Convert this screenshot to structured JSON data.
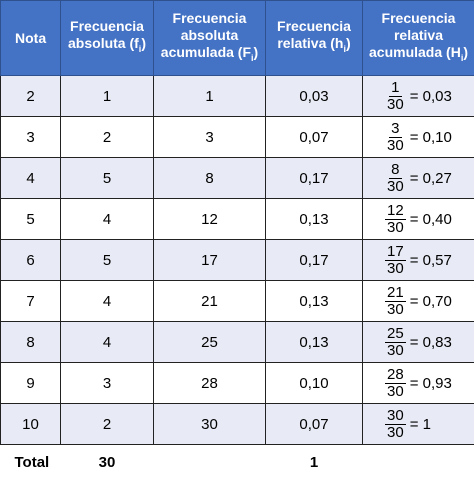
{
  "headers": {
    "nota": "Nota",
    "fi": "Frecuencia absoluta (f",
    "fi_sub": "i",
    "Fi": "Frecuencia absoluta acumulada (F",
    "Fi_sub": "i",
    "hi": "Frecuencia relativa (h",
    "hi_sub": "i",
    "Hi": "Frecuencia relativa acumulada (H",
    "Hi_sub": "i",
    "close": ")"
  },
  "rows": [
    {
      "nota": "2",
      "fi": "1",
      "Fi": "1",
      "hi": "0,03",
      "num": "1",
      "den": "30",
      "Hi": "= 0,03"
    },
    {
      "nota": "3",
      "fi": "2",
      "Fi": "3",
      "hi": "0,07",
      "num": "3",
      "den": "30",
      "Hi": "= 0,10"
    },
    {
      "nota": "4",
      "fi": "5",
      "Fi": "8",
      "hi": "0,17",
      "num": "8",
      "den": "30",
      "Hi": "= 0,27"
    },
    {
      "nota": "5",
      "fi": "4",
      "Fi": "12",
      "hi": "0,13",
      "num": "12",
      "den": "30",
      "Hi": "= 0,40"
    },
    {
      "nota": "6",
      "fi": "5",
      "Fi": "17",
      "hi": "0,17",
      "num": "17",
      "den": "30",
      "Hi": "= 0,57"
    },
    {
      "nota": "7",
      "fi": "4",
      "Fi": "21",
      "hi": "0,13",
      "num": "21",
      "den": "30",
      "Hi": "= 0,70"
    },
    {
      "nota": "8",
      "fi": "4",
      "Fi": "25",
      "hi": "0,13",
      "num": "25",
      "den": "30",
      "Hi": "= 0,83"
    },
    {
      "nota": "9",
      "fi": "3",
      "Fi": "28",
      "hi": "0,10",
      "num": "28",
      "den": "30",
      "Hi": "= 0,93"
    },
    {
      "nota": "10",
      "fi": "2",
      "Fi": "30",
      "hi": "0,07",
      "num": "30",
      "den": "30",
      "Hi": "= 1"
    }
  ],
  "total": {
    "label": "Total",
    "fi": "30",
    "hi": "1"
  }
}
